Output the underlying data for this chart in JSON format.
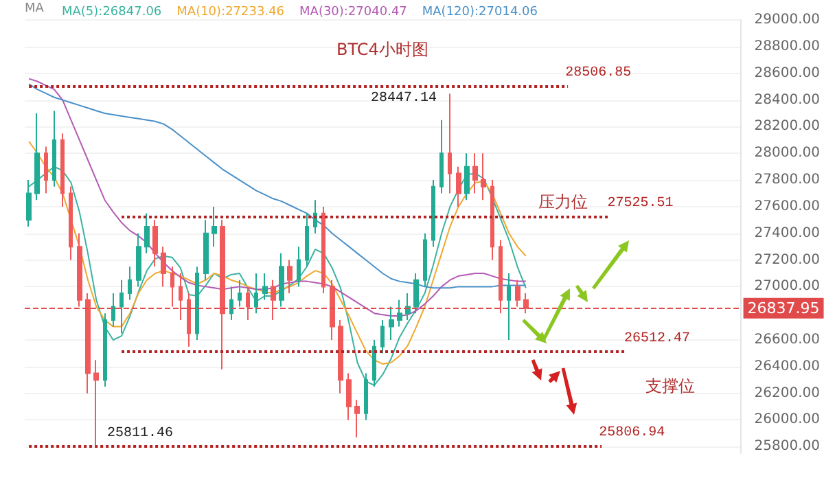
{
  "chart_data": {
    "type": "candlestick",
    "title": "BTC4小时图",
    "legend_title": "MA",
    "categories": [
      null,
      null,
      null,
      null,
      null,
      null,
      null,
      null,
      null,
      null,
      null,
      null,
      null,
      null,
      null,
      null,
      null,
      null,
      null,
      null,
      null,
      null,
      null,
      null,
      null,
      null,
      null,
      null,
      null,
      null,
      null,
      null,
      null,
      null,
      null,
      null,
      null,
      null,
      null,
      null,
      null,
      null,
      null,
      null,
      null,
      null,
      null,
      null,
      null,
      null,
      null,
      null,
      null,
      null,
      null,
      null,
      null,
      null,
      null,
      null,
      null,
      null,
      null,
      null,
      null,
      null,
      null,
      null,
      null,
      null,
      null,
      null,
      null,
      null,
      null,
      null,
      null,
      null,
      null,
      null,
      null,
      null,
      null,
      null,
      null
    ],
    "ohlc": [
      [
        27500,
        27800,
        27450,
        27700
      ],
      [
        27700,
        28300,
        27650,
        28000
      ],
      [
        28000,
        28050,
        27700,
        27800
      ],
      [
        27800,
        28320,
        27750,
        28100
      ],
      [
        28100,
        28150,
        27600,
        27700
      ],
      [
        27700,
        27750,
        27200,
        27300
      ],
      [
        27300,
        27400,
        26850,
        26900
      ],
      [
        26900,
        26950,
        26200,
        26350
      ],
      [
        26350,
        26450,
        25811.46,
        26300
      ],
      [
        26300,
        26800,
        26250,
        26750
      ],
      [
        26750,
        26950,
        26700,
        26850
      ],
      [
        26850,
        27050,
        26650,
        26950
      ],
      [
        26950,
        27150,
        26900,
        27050
      ],
      [
        27050,
        27400,
        27000,
        27300
      ],
      [
        27300,
        27550,
        27250,
        27450
      ],
      [
        27450,
        27500,
        27150,
        27250
      ],
      [
        27250,
        27300,
        27000,
        27100
      ],
      [
        27100,
        27150,
        26850,
        27000
      ],
      [
        27000,
        27100,
        26750,
        26900
      ],
      [
        26900,
        26950,
        26550,
        26650
      ],
      [
        26650,
        27150,
        26600,
        27100
      ],
      [
        27100,
        27500,
        27050,
        27400
      ],
      [
        27400,
        27600,
        27300,
        27450
      ],
      [
        27450,
        27500,
        26380,
        26800
      ],
      [
        26800,
        27000,
        26750,
        26900
      ],
      [
        26900,
        27050,
        26850,
        26950
      ],
      [
        26950,
        27000,
        26750,
        26850
      ],
      [
        26850,
        27100,
        26800,
        26950
      ],
      [
        26950,
        27100,
        26900,
        27000
      ],
      [
        27000,
        27050,
        26750,
        26900
      ],
      [
        26900,
        27250,
        26850,
        27150
      ],
      [
        27150,
        27200,
        26950,
        27050
      ],
      [
        27050,
        27300,
        27000,
        27200
      ],
      [
        27200,
        27550,
        27150,
        27450
      ],
      [
        27450,
        27650,
        27400,
        27550
      ],
      [
        27550,
        27600,
        26950,
        27000
      ],
      [
        27000,
        27050,
        26600,
        26700
      ],
      [
        26700,
        26750,
        26200,
        26300
      ],
      [
        26300,
        26350,
        26000,
        26100
      ],
      [
        26100,
        26150,
        25870,
        26050
      ],
      [
        26050,
        26350,
        26000,
        26300
      ],
      [
        26300,
        26600,
        26250,
        26550
      ],
      [
        26550,
        26750,
        26500,
        26700
      ],
      [
        26700,
        26850,
        26600,
        26750
      ],
      [
        26750,
        26900,
        26700,
        26800
      ],
      [
        26800,
        26950,
        26750,
        26850
      ],
      [
        26850,
        27100,
        26800,
        27050
      ],
      [
        27050,
        27400,
        27000,
        27350
      ],
      [
        27350,
        27800,
        27300,
        27750
      ],
      [
        27750,
        28250,
        27700,
        28000
      ],
      [
        28000,
        28447.14,
        27700,
        27850
      ],
      [
        27850,
        27900,
        27600,
        27700
      ],
      [
        27700,
        28000,
        27650,
        27900
      ],
      [
        27900,
        28000,
        27700,
        27800
      ],
      [
        27800,
        28000,
        27650,
        27750
      ],
      [
        27750,
        27800,
        27200,
        27300
      ],
      [
        27300,
        27350,
        26800,
        26900
      ],
      [
        26900,
        27100,
        26600,
        27000
      ],
      [
        27000,
        27050,
        26850,
        26900
      ],
      [
        26900,
        26950,
        26800,
        26837.95
      ],
      null,
      null,
      null,
      null,
      null,
      null,
      null,
      null,
      null,
      null,
      null,
      null,
      null,
      null,
      null,
      null,
      null,
      null,
      null,
      null,
      null,
      null,
      null,
      null,
      null
    ],
    "series": [
      {
        "type": "line",
        "name": "MA(5):26847.06",
        "color": "#3bb3a0",
        "values": [
          27750,
          27800,
          27850,
          27900,
          27870,
          27780,
          27560,
          27250,
          26900,
          26700,
          26600,
          26630,
          26780,
          26960,
          27120,
          27210,
          27230,
          27220,
          27140,
          26940,
          26930,
          27010,
          27100,
          27060,
          27090,
          27100,
          26990,
          26890,
          26930,
          26930,
          26970,
          27010,
          27060,
          27150,
          27280,
          27250,
          27140,
          26990,
          26730,
          26430,
          26290,
          26260,
          26340,
          26460,
          26620,
          26730,
          26830,
          26950,
          27160,
          27400,
          27600,
          27730,
          27840,
          27850,
          27810,
          27670,
          27510,
          27350,
          27150,
          26990,
          null,
          null,
          null,
          null,
          null,
          null,
          null,
          null,
          null,
          null,
          null,
          null,
          null,
          null,
          null,
          null,
          null,
          null,
          null,
          null,
          null,
          null,
          null,
          null,
          null
        ]
      },
      {
        "type": "line",
        "name": "MA(10):27233.46",
        "color": "#f0a830",
        "values": [
          28090,
          28000,
          27900,
          27820,
          27700,
          27500,
          27300,
          27050,
          26850,
          26750,
          26700,
          26700,
          26800,
          26950,
          27050,
          27100,
          27120,
          27100,
          27080,
          27050,
          27020,
          27050,
          27100,
          27080,
          27050,
          27030,
          27000,
          26980,
          26960,
          26950,
          26980,
          27000,
          27030,
          27080,
          27120,
          27100,
          27020,
          26900,
          26780,
          26650,
          26520,
          26450,
          26420,
          26430,
          26480,
          26560,
          26700,
          26850,
          27050,
          27250,
          27450,
          27600,
          27700,
          27780,
          27790,
          27700,
          27550,
          27400,
          27300,
          27230,
          null,
          null,
          null,
          null,
          null,
          null,
          null,
          null,
          null,
          null,
          null,
          null,
          null,
          null,
          null,
          null,
          null,
          null,
          null,
          null,
          null,
          null,
          null,
          null,
          null
        ]
      },
      {
        "type": "line",
        "name": "MA(30):27040.47",
        "color": "#b45ab4",
        "values": [
          28560,
          28540,
          28510,
          28480,
          28400,
          28250,
          28100,
          27950,
          27800,
          27650,
          27560,
          27480,
          27420,
          27380,
          27330,
          27250,
          27180,
          27120,
          27070,
          27030,
          27010,
          27000,
          26990,
          26980,
          26990,
          27000,
          26990,
          26980,
          26980,
          26990,
          27020,
          27030,
          27040,
          27040,
          27030,
          27020,
          27000,
          26960,
          26920,
          26880,
          26840,
          26800,
          26790,
          26780,
          26780,
          26790,
          26820,
          26870,
          26930,
          27000,
          27050,
          27080,
          27090,
          27100,
          27100,
          27080,
          27060,
          27050,
          27040,
          27040,
          null,
          null,
          null,
          null,
          null,
          null,
          null,
          null,
          null,
          null,
          null,
          null,
          null,
          null,
          null,
          null,
          null,
          null,
          null,
          null,
          null,
          null,
          null,
          null,
          null
        ]
      },
      {
        "type": "line",
        "name": "MA(120):27014.06",
        "color": "#4a90c8",
        "values": [
          28520,
          28480,
          28450,
          28420,
          28400,
          28380,
          28360,
          28340,
          28320,
          28300,
          28290,
          28280,
          28270,
          28260,
          28250,
          28240,
          28220,
          28180,
          28130,
          28080,
          28030,
          27980,
          27930,
          27880,
          27840,
          27800,
          27760,
          27720,
          27690,
          27660,
          27640,
          27610,
          27580,
          27550,
          27500,
          27460,
          27400,
          27350,
          27300,
          27250,
          27200,
          27150,
          27100,
          27060,
          27040,
          27030,
          27020,
          27000,
          26990,
          26990,
          26990,
          27000,
          27000,
          27000,
          27000,
          27000,
          27010,
          27010,
          27010,
          27010,
          null,
          null,
          null,
          null,
          null,
          null,
          null,
          null,
          null,
          null,
          null,
          null,
          null,
          null,
          null,
          null,
          null,
          null,
          null,
          null,
          null,
          null,
          null,
          null,
          null
        ]
      }
    ],
    "ylim": [
      25750,
      29000
    ],
    "yticks": [
      {
        "value": 25800,
        "label": "25800.00"
      },
      {
        "value": 26000,
        "label": "26000.00"
      },
      {
        "value": 26200,
        "label": "26200.00"
      },
      {
        "value": 26400,
        "label": "26400.00"
      },
      {
        "value": 26600,
        "label": "26600.00"
      },
      {
        "value": 27000,
        "label": "27000.00"
      },
      {
        "value": 27200,
        "label": "27200.00"
      },
      {
        "value": 27400,
        "label": "27400.00"
      },
      {
        "value": 27600,
        "label": "27600.00"
      },
      {
        "value": 27800,
        "label": "27800.00"
      },
      {
        "value": 28000,
        "label": "28000.00"
      },
      {
        "value": 28200,
        "label": "28200.00"
      },
      {
        "value": 28400,
        "label": "28400.00"
      },
      {
        "value": 28600,
        "label": "28600.00"
      },
      {
        "value": 28800,
        "label": "28800.00"
      },
      {
        "value": 29000,
        "label": "29000.00"
      }
    ],
    "ref_lines": [
      {
        "axis": "y",
        "value": 28506.85,
        "label": "28506.85",
        "color": "#b22222",
        "line_style": "dotted"
      },
      {
        "axis": "y",
        "value": 27525.51,
        "label": "27525.51",
        "color": "#b22222",
        "line_style": "dotted"
      },
      {
        "axis": "y",
        "value": 26512.47,
        "label": "26512.47",
        "color": "#b22222",
        "line_style": "dotted"
      },
      {
        "axis": "y",
        "value": 25806.94,
        "label": "25806.94",
        "color": "#b22222",
        "line_style": "dotted"
      },
      {
        "axis": "y",
        "value": 26837.95,
        "label": "26837.95",
        "color": "#e04a4a",
        "line_style": "dashed"
      }
    ],
    "annotations": [
      "28447.14",
      "25811.46",
      "压力位",
      "支撑位"
    ],
    "grid": "y",
    "legend": "top",
    "tick_labels": "y"
  }
}
